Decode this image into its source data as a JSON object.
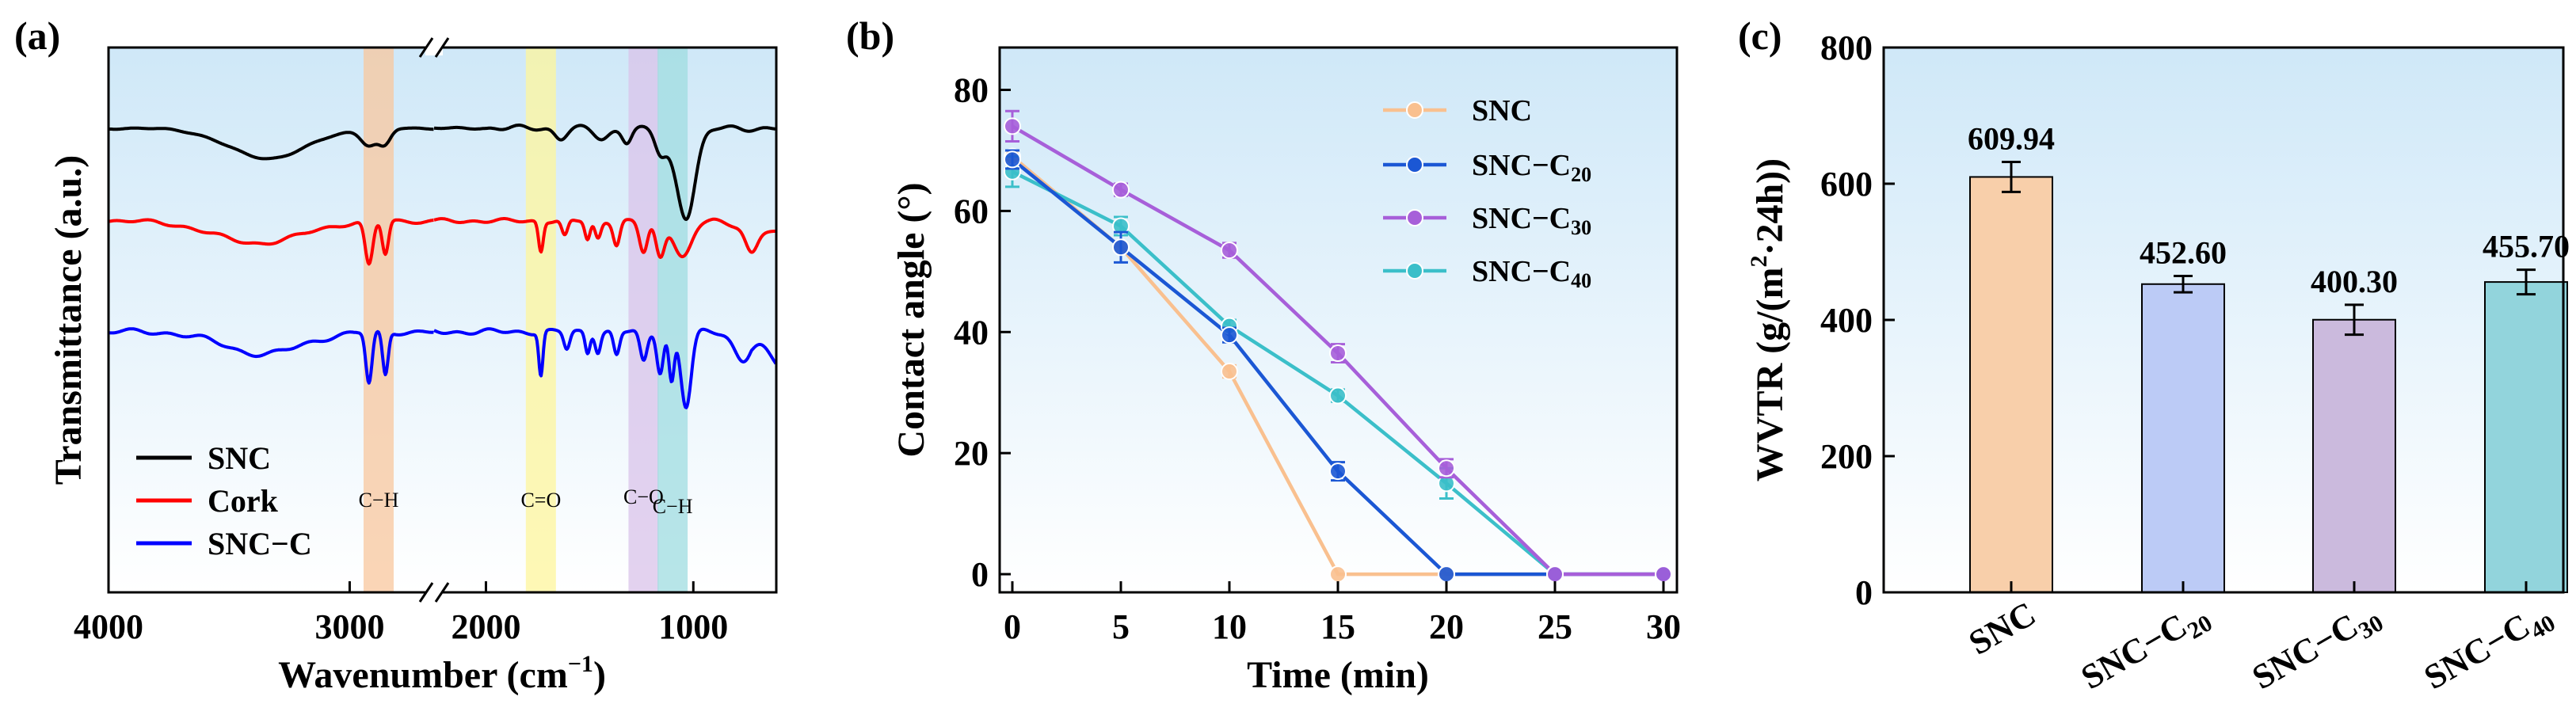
{
  "chart_data": [
    {
      "type": "line",
      "panel_label": "(a)",
      "xlabel": "Wavenumber (cm",
      "xlabel_sup": "−1",
      "xlabel_close": ")",
      "ylabel": "Transmittance (a.u.)",
      "xlim": [
        4000,
        600
      ],
      "axis_break": [
        2650,
        2250
      ],
      "xticks": [
        4000,
        3000,
        2000,
        1000
      ],
      "xtick_labels": [
        "4000",
        "3000",
        "2000",
        "1000"
      ],
      "bands": [
        {
          "label": "C−H",
          "center": 2880,
          "color": "#f8c79e"
        },
        {
          "label": "C=O",
          "center": 1735,
          "color": "#fdf59c"
        },
        {
          "label": "C−O",
          "center": 1240,
          "color": "#d9c3ea"
        },
        {
          "label": "C−H",
          "center": 1100,
          "color": "#9fdce0"
        }
      ],
      "series": [
        {
          "name": "SNC",
          "color": "#000000"
        },
        {
          "name": "Cork",
          "color": "#ff0000"
        },
        {
          "name": "SNC−C",
          "color": "#0000ff"
        }
      ]
    },
    {
      "type": "line",
      "panel_label": "(b)",
      "xlabel": "Time (min)",
      "ylabel": "Contact angle (°)",
      "xlim": [
        0,
        30
      ],
      "ylim": [
        -3,
        87
      ],
      "x": [
        0,
        5,
        10,
        15,
        20,
        25,
        30
      ],
      "xtick_labels": [
        "0",
        "5",
        "10",
        "15",
        "20",
        "25",
        "30"
      ],
      "yticks": [
        0,
        20,
        40,
        60,
        80
      ],
      "ytick_labels": [
        "0",
        "20",
        "40",
        "60",
        "80"
      ],
      "series": [
        {
          "name": "SNC",
          "sub": "",
          "color": "#f9c08f",
          "values": [
            69,
            54,
            33.5,
            0,
            0,
            0,
            0
          ],
          "errors": [
            0,
            0,
            1,
            0,
            0,
            0,
            0
          ]
        },
        {
          "name": "SNC−C",
          "sub": "20",
          "color": "#1b57d4",
          "values": [
            68.5,
            54,
            39.5,
            17,
            0,
            0,
            0
          ],
          "errors": [
            1.5,
            2.5,
            1.2,
            1.5,
            0,
            0,
            0
          ]
        },
        {
          "name": "SNC−C",
          "sub": "30",
          "color": "#a75fd9",
          "values": [
            74,
            63.5,
            53.5,
            36.5,
            17.5,
            0,
            0
          ],
          "errors": [
            2.5,
            1,
            1.2,
            1.5,
            1.5,
            0,
            0
          ]
        },
        {
          "name": "SNC−C",
          "sub": "40",
          "color": "#3bbfc9",
          "values": [
            66.5,
            57.5,
            41,
            29.5,
            15,
            0,
            0
          ],
          "errors": [
            2.5,
            1.5,
            1,
            1,
            2.5,
            0,
            0
          ]
        }
      ]
    },
    {
      "type": "bar",
      "panel_label": "(c)",
      "ylabel": "WVTR (g/(m",
      "ylabel_sup": "2",
      "ylabel_close": "·24h))",
      "ylim": [
        0,
        800
      ],
      "yticks": [
        0,
        200,
        400,
        600,
        800
      ],
      "ytick_labels": [
        "0",
        "200",
        "400",
        "600",
        "800"
      ],
      "categories": [
        {
          "name": "SNC",
          "sub": ""
        },
        {
          "name": "SNC−C",
          "sub": "20"
        },
        {
          "name": "SNC−C",
          "sub": "30"
        },
        {
          "name": "SNC−C",
          "sub": "40"
        }
      ],
      "values": [
        609.94,
        452.6,
        400.3,
        455.7
      ],
      "value_labels": [
        "609.94",
        "452.60",
        "400.30",
        "455.70"
      ],
      "errors": [
        22,
        12,
        22,
        18
      ],
      "colors": [
        "#f8cfaa",
        "#bccbf6",
        "#cbbadd",
        "#92d4dc"
      ]
    }
  ]
}
